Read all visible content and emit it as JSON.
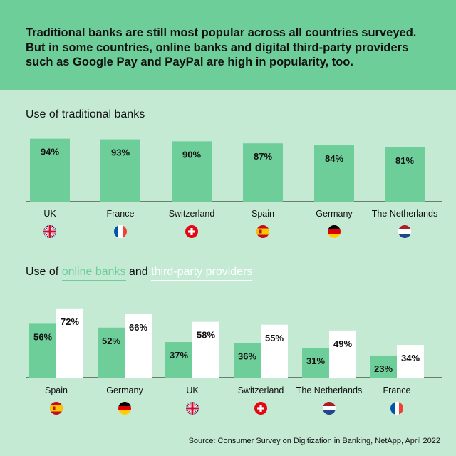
{
  "header": {
    "text": "Traditional banks are still most popular across all countries surveyed. But in some countries, online banks and digital third-party providers such as Google Pay and PayPal are high in popularity, too."
  },
  "section1": {
    "title": "Use of traditional banks"
  },
  "section2": {
    "title_prefix": "Use of ",
    "online_label": "online banks",
    "and_word": " and ",
    "third_label": "third-party providers"
  },
  "source": "Source: Consumer Survey on Digitization in Banking, NetApp, April 2022",
  "colors": {
    "header_bg": "#6ece99",
    "page_bg": "#c5ead4",
    "bar_green": "#6ece99",
    "bar_white": "#ffffff"
  },
  "chart_data": [
    {
      "type": "bar",
      "title": "Use of traditional banks",
      "categories": [
        "UK",
        "France",
        "Switzerland",
        "Spain",
        "Germany",
        "The Netherlands"
      ],
      "flags": [
        "uk-flag-icon",
        "france-flag-icon",
        "switzerland-flag-icon",
        "spain-flag-icon",
        "germany-flag-icon",
        "netherlands-flag-icon"
      ],
      "values": [
        94,
        93,
        90,
        87,
        84,
        81
      ],
      "labels": [
        "94%",
        "93%",
        "90%",
        "87%",
        "84%",
        "81%"
      ],
      "unit": "%"
    },
    {
      "type": "bar",
      "title": "Use of online banks and third-party providers",
      "categories": [
        "Spain",
        "Germany",
        "UK",
        "Switzerland",
        "The Netherlands",
        "France"
      ],
      "flags": [
        "spain-flag-icon",
        "germany-flag-icon",
        "uk-flag-icon",
        "switzerland-flag-icon",
        "netherlands-flag-icon",
        "france-flag-icon"
      ],
      "series": [
        {
          "name": "online banks",
          "color": "#6ece99",
          "values": [
            56,
            52,
            37,
            36,
            31,
            23
          ],
          "labels": [
            "56%",
            "52%",
            "37%",
            "36%",
            "31%",
            "23%"
          ]
        },
        {
          "name": "third-party providers",
          "color": "#ffffff",
          "values": [
            72,
            66,
            58,
            55,
            49,
            34
          ],
          "labels": [
            "72%",
            "66%",
            "58%",
            "55%",
            "49%",
            "34%"
          ]
        }
      ],
      "unit": "%"
    }
  ]
}
